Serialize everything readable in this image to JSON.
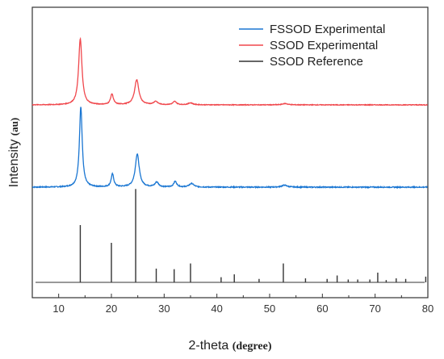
{
  "chart_data": {
    "type": "line",
    "xlabel": "2-theta",
    "xlabel_unit": "(degree)",
    "ylabel": "Intensity",
    "ylabel_unit": "(au)",
    "xlim": [
      5,
      80
    ],
    "x_ticks": [
      10,
      20,
      30,
      40,
      50,
      60,
      70,
      80
    ],
    "y_ticks_shown": false,
    "grid": false,
    "legend_position": "top-right",
    "colors": {
      "fssod": "#1a76d2",
      "ssod": "#f0474c",
      "reference": "#333333"
    },
    "series": [
      {
        "name": "FSSOD Experimental",
        "kind": "line",
        "baseline": 0,
        "noise": 0.012,
        "peaks": [
          {
            "x": 14.2,
            "height": 1.0,
            "width": 0.32
          },
          {
            "x": 20.2,
            "height": 0.16,
            "width": 0.3
          },
          {
            "x": 24.9,
            "height": 0.41,
            "width": 0.45
          },
          {
            "x": 28.6,
            "height": 0.06,
            "width": 0.4
          },
          {
            "x": 32.1,
            "height": 0.07,
            "width": 0.35
          },
          {
            "x": 35.2,
            "height": 0.045,
            "width": 0.5
          },
          {
            "x": 52.8,
            "height": 0.025,
            "width": 0.6
          }
        ]
      },
      {
        "name": "SSOD Experimental",
        "kind": "line",
        "baseline": 0,
        "noise": 0.01,
        "peaks": [
          {
            "x": 14.1,
            "height": 1.0,
            "width": 0.38
          },
          {
            "x": 20.1,
            "height": 0.16,
            "width": 0.32
          },
          {
            "x": 24.8,
            "height": 0.38,
            "width": 0.48
          },
          {
            "x": 28.4,
            "height": 0.05,
            "width": 0.45
          },
          {
            "x": 32.0,
            "height": 0.05,
            "width": 0.4
          },
          {
            "x": 35.0,
            "height": 0.03,
            "width": 0.5
          },
          {
            "x": 52.9,
            "height": 0.02,
            "width": 0.6
          }
        ]
      },
      {
        "name": "SSOD Reference",
        "kind": "stick",
        "x": [
          14.1,
          20.0,
          24.6,
          28.5,
          31.9,
          35.0,
          40.8,
          43.3,
          48.0,
          52.6,
          56.8,
          60.9,
          62.8,
          64.9,
          66.7,
          69.0,
          70.5,
          72.1,
          74.0,
          75.8,
          79.6
        ],
        "values": [
          100,
          69,
          163,
          24,
          23,
          33,
          9,
          14,
          6,
          33,
          7,
          6,
          12,
          5,
          5,
          5,
          17,
          4,
          7,
          6,
          10
        ]
      }
    ]
  }
}
